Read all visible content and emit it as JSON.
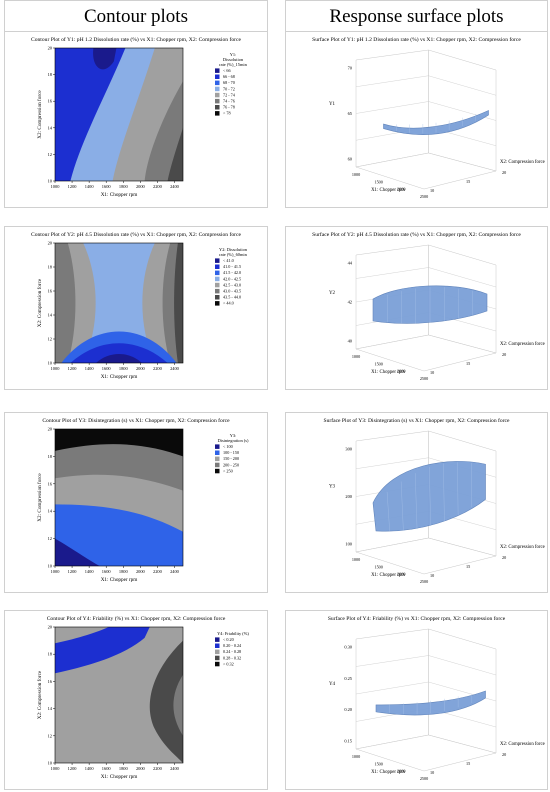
{
  "headers": {
    "contour": "Contour plots",
    "surface": "Response surface plots"
  },
  "colors": {
    "c1": "#1a1a8c",
    "c2": "#1c2fd0",
    "c3": "#2f63e8",
    "c4": "#8aaee6",
    "c5": "#a0a0a0",
    "c6": "#7a7a7a",
    "c7": "#4a4a4a",
    "c8": "#0a0a0a",
    "surface": "#7ba0d8",
    "grid": "#c8c8c8"
  },
  "chart_data": [
    {
      "type": "heatmap",
      "title": "Contour Plot of Y1: pH 1.2 Dissolution rate (%) vs X1: Chopper rpm, X2: Compression force",
      "xlabel": "X1: Chopper rpm",
      "ylabel": "X2: Compression force",
      "xlim": [
        1000,
        2500
      ],
      "ylim": [
        10,
        20
      ],
      "xticks": [
        "1000",
        "1200",
        "1400",
        "1600",
        "1800",
        "2000",
        "2200",
        "2400"
      ],
      "yticks": [
        "10",
        "12",
        "14",
        "16",
        "18",
        "20"
      ],
      "legend_title": [
        "Y1:",
        "Dissolution",
        "rate (%)_15min"
      ],
      "legend": [
        {
          "label": "<    66",
          "color": "c1"
        },
        {
          "label": "66  -  68",
          "color": "c2"
        },
        {
          "label": "68  -  70",
          "color": "c3"
        },
        {
          "label": "70  -  72",
          "color": "c4"
        },
        {
          "label": "72  -  74",
          "color": "c5"
        },
        {
          "label": "74  -  76",
          "color": "c6"
        },
        {
          "label": "76  -  78",
          "color": "c7"
        },
        {
          "label": ">    78",
          "color": "c8"
        }
      ]
    },
    {
      "type": "heatmap",
      "title": "Contour Plot of Y2: pH 4.5 Dissolution rate (%) vs X1: Chopper rpm, X2: Compression force",
      "xlabel": "X1: Chopper rpm",
      "ylabel": "X2: Compression force",
      "xlim": [
        1000,
        2500
      ],
      "ylim": [
        10,
        20
      ],
      "xticks": [
        "1000",
        "1200",
        "1400",
        "1600",
        "1800",
        "2000",
        "2200",
        "2400"
      ],
      "yticks": [
        "10",
        "12",
        "14",
        "16",
        "18",
        "20"
      ],
      "legend_title": [
        "Y2: Dissolution",
        "rate (%)_60min"
      ],
      "legend": [
        {
          "label": "<    41.0",
          "color": "c1"
        },
        {
          "label": "41.0  -  41.5",
          "color": "c2"
        },
        {
          "label": "41.5  -  42.0",
          "color": "c3"
        },
        {
          "label": "42.0  -  42.5",
          "color": "c4"
        },
        {
          "label": "42.5  -  43.0",
          "color": "c5"
        },
        {
          "label": "43.0  -  43.5",
          "color": "c6"
        },
        {
          "label": "43.5  -  44.0",
          "color": "c7"
        },
        {
          "label": ">    44.0",
          "color": "c8"
        }
      ]
    },
    {
      "type": "heatmap",
      "title": "Contour Plot of Y3: Disintegration (s) vs X1: Chopper rpm, X2: Compression force",
      "xlabel": "X1: Chopper rpm",
      "ylabel": "X2: Compression force",
      "xlim": [
        1000,
        2500
      ],
      "ylim": [
        10,
        20
      ],
      "xticks": [
        "1000",
        "1200",
        "1400",
        "1600",
        "1800",
        "2000",
        "2200",
        "2400"
      ],
      "yticks": [
        "10",
        "12",
        "14",
        "16",
        "18",
        "20"
      ],
      "legend_title": [
        "Y3:",
        "Disintegration (s)"
      ],
      "legend": [
        {
          "label": "<    100",
          "color": "c1"
        },
        {
          "label": "100  -  150",
          "color": "c3"
        },
        {
          "label": "150  -  200",
          "color": "c5"
        },
        {
          "label": "200  -  250",
          "color": "c6"
        },
        {
          "label": ">    250",
          "color": "c8"
        }
      ]
    },
    {
      "type": "heatmap",
      "title": "Contour Plot of Y4: Friability (%) vs X1: Chopper rpm, X2: Compression force",
      "xlabel": "X1: Chopper rpm",
      "ylabel": "X2: Compression force",
      "xlim": [
        1000,
        2500
      ],
      "ylim": [
        10,
        20
      ],
      "xticks": [
        "1000",
        "1200",
        "1400",
        "1600",
        "1800",
        "2000",
        "2200",
        "2400"
      ],
      "yticks": [
        "10",
        "12",
        "14",
        "16",
        "18",
        "20"
      ],
      "legend_title": [
        "Y4: Friability (%)"
      ],
      "legend": [
        {
          "label": "<    0.20",
          "color": "c1"
        },
        {
          "label": "0.20  -  0.24",
          "color": "c2"
        },
        {
          "label": "0.24  -  0.28",
          "color": "c5"
        },
        {
          "label": "0.28  -  0.32",
          "color": "c7"
        },
        {
          "label": ">    0.32",
          "color": "c8"
        }
      ]
    },
    {
      "type": "surface",
      "title": "Surface Plot of Y1: pH 1.2 Dissolution rate (%) vs X1: Chopper rpm, X2: Compression force",
      "zlabel": "Y1",
      "xlabel": "X1: Chopper rpm",
      "ylabel": "X2: Compression force",
      "xticks": [
        "1000",
        "1500",
        "2000",
        "2500"
      ],
      "yticks": [
        "10",
        "15",
        "20"
      ],
      "zticks": [
        "70",
        "65",
        "60"
      ]
    },
    {
      "type": "surface",
      "title": "Surface Plot of Y2: pH 4.5 Dissolution rate (%) vs X1: Chopper rpm, X2: Compression force",
      "zlabel": "Y2",
      "xlabel": "X1: Chopper rpm",
      "ylabel": "X2: Compression force",
      "xticks": [
        "1000",
        "1500",
        "2000",
        "2500"
      ],
      "yticks": [
        "10",
        "15",
        "20"
      ],
      "zticks": [
        "44",
        "42",
        "40"
      ]
    },
    {
      "type": "surface",
      "title": "Surface Plot of Y3: Disintegration (s) vs X1: Chopper rpm, X2: Compression force",
      "zlabel": "Y3",
      "xlabel": "X1: Chopper rpm",
      "ylabel": "X2: Compression force",
      "xticks": [
        "1000",
        "1500",
        "2000",
        "2500"
      ],
      "yticks": [
        "10",
        "15",
        "20"
      ],
      "zticks": [
        "300",
        "200",
        "100"
      ]
    },
    {
      "type": "surface",
      "title": "Surface Plot of Y4: Friability (%) vs X1: Chopper rpm, X2: Compression force",
      "zlabel": "Y4",
      "xlabel": "X1: Chopper rpm",
      "ylabel": "X2: Compression force",
      "xticks": [
        "1000",
        "1500",
        "2000",
        "2500"
      ],
      "yticks": [
        "10",
        "15",
        "20"
      ],
      "zticks": [
        "0.30",
        "0.25",
        "0.20",
        "0.15"
      ]
    }
  ]
}
